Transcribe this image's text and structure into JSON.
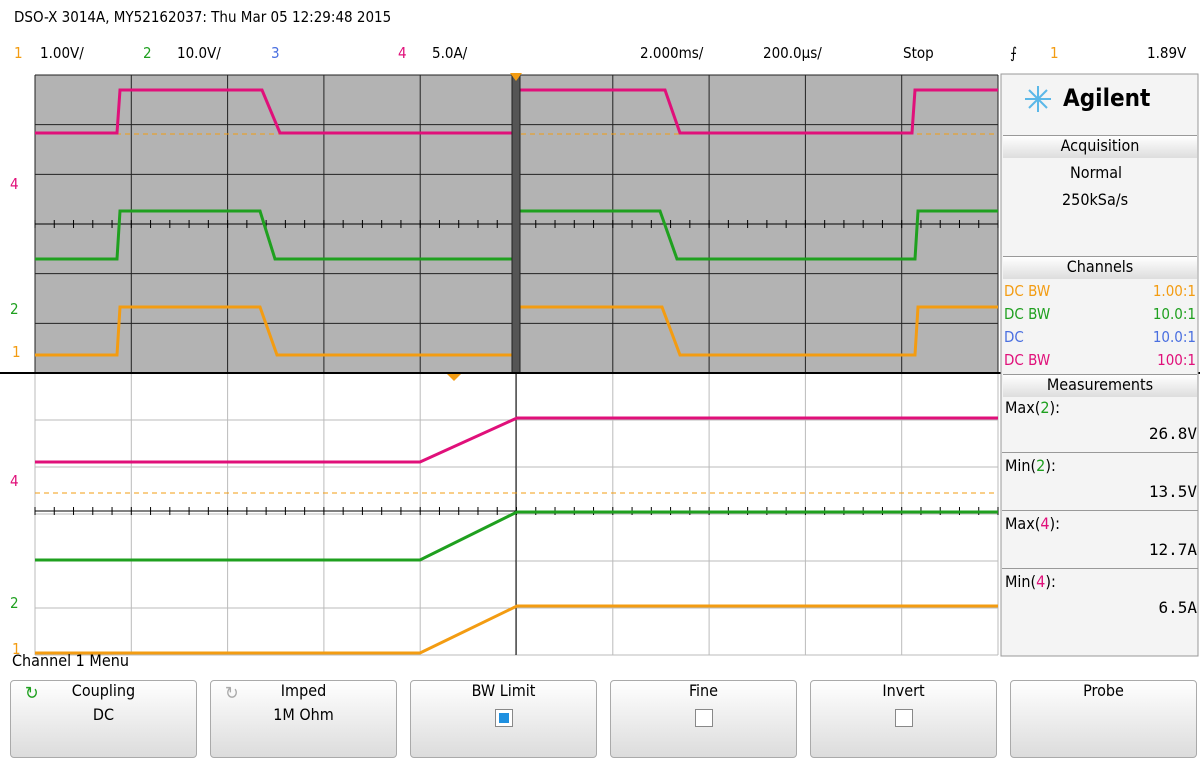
{
  "header": {
    "title": "DSO-X 3014A, MY52162037: Thu Mar 05 12:29:48 2015",
    "channels": [
      {
        "num": "1",
        "scale": "1.00V/"
      },
      {
        "num": "2",
        "scale": "10.0V/"
      },
      {
        "num": "3"
      },
      {
        "num": "4",
        "scale": "5.0A/"
      }
    ],
    "timebase": "2.000ms/",
    "delay": "200.0µs/",
    "status": "Stop",
    "trigger": {
      "source": "1",
      "level": "1.89V"
    }
  },
  "markers": {
    "top": [
      "4",
      "2",
      "1"
    ],
    "bottom": [
      "4",
      "2",
      "1"
    ]
  },
  "panel": {
    "brand": "Agilent",
    "acquisition": {
      "title": "Acquisition",
      "mode": "Normal",
      "rate": "250kSa/s"
    },
    "channels": {
      "title": "Channels",
      "rows": [
        {
          "coupling": "DC BW",
          "ratio": "1.00:1"
        },
        {
          "coupling": "DC BW",
          "ratio": "10.0:1"
        },
        {
          "coupling": "DC",
          "ratio": "10.0:1"
        },
        {
          "coupling": "DC BW",
          "ratio": "100:1"
        }
      ]
    },
    "measurements": {
      "title": "Measurements",
      "items": [
        {
          "prefix": "Max(",
          "source": "2",
          "suffix": "):",
          "value": "26.8V"
        },
        {
          "prefix": "Min(",
          "source": "2",
          "suffix": "):",
          "value": "13.5V"
        },
        {
          "prefix": "Max(",
          "source": "4",
          "suffix": "):",
          "value": "12.7A"
        },
        {
          "prefix": "Min(",
          "source": "4",
          "suffix": "):",
          "value": "6.5A"
        }
      ]
    }
  },
  "menu": {
    "title": "Channel 1 Menu",
    "softkeys": [
      {
        "label": "Coupling",
        "value": "DC"
      },
      {
        "label": "Imped",
        "value": "1M Ohm"
      },
      {
        "label": "BW Limit"
      },
      {
        "label": "Fine"
      },
      {
        "label": "Invert"
      },
      {
        "label": "Probe"
      }
    ]
  }
}
